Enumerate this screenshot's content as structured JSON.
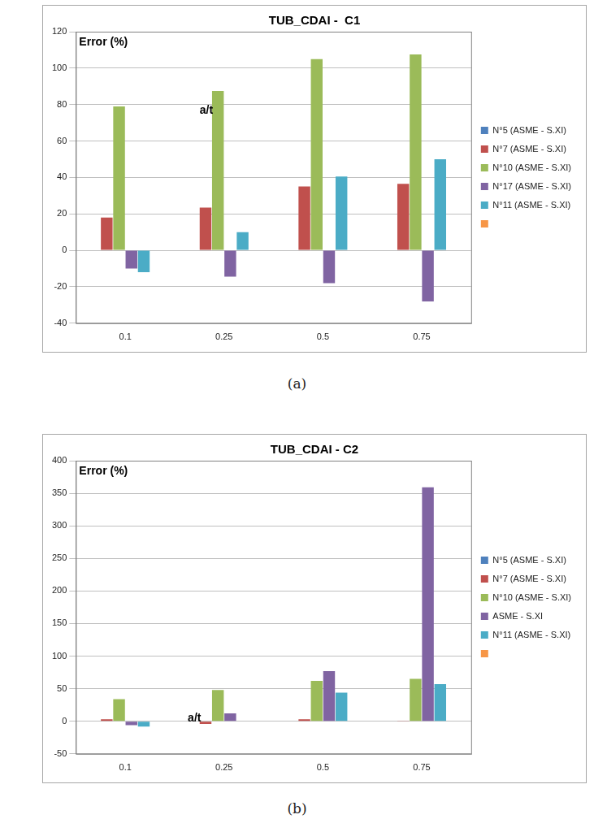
{
  "chart_data": [
    {
      "type": "bar",
      "title": "TUB_CDAI -  C1",
      "y_label": "Error (%)",
      "annotations": [
        "a/t"
      ],
      "caption": "(a)",
      "categories": [
        "0.1",
        "0.25",
        "0.5",
        "0.75"
      ],
      "series": [
        {
          "name": "N°5 (ASME - S.XI)",
          "color": "#4f81bd",
          "values": [
            0,
            0,
            0,
            0
          ]
        },
        {
          "name": "N°7 (ASME - S.XI)",
          "color": "#c0504d",
          "values": [
            18,
            23.5,
            35,
            36.5
          ]
        },
        {
          "name": "N°10 (ASME - S.XI)",
          "color": "#9bbb59",
          "values": [
            79,
            87.5,
            105,
            107.5
          ]
        },
        {
          "name": "N°17 (ASME - S.XI)",
          "color": "#8064a2",
          "values": [
            -10,
            -14.5,
            -18,
            -28
          ]
        },
        {
          "name": "N°11 (ASME - S.XI)",
          "color": "#4bacc6",
          "values": [
            -12,
            10,
            40.5,
            50
          ]
        },
        {
          "name": null,
          "color": "#f79646",
          "values": [
            null,
            null,
            null,
            null
          ]
        }
      ],
      "ylim": [
        -40,
        120
      ],
      "yticks": [
        -40,
        -20,
        0,
        20,
        40,
        60,
        80,
        100,
        120
      ],
      "grid": true,
      "legend": "right"
    },
    {
      "type": "bar",
      "title": "TUB_CDAI - C2",
      "y_label": "Error (%)",
      "annotations": [
        "a/t"
      ],
      "caption": "(b)",
      "categories": [
        "0.1",
        "0.25",
        "0.5",
        "0.75"
      ],
      "series": [
        {
          "name": "N°5 (ASME - S.XI)",
          "color": "#4f81bd",
          "values": [
            0,
            0,
            0,
            0
          ]
        },
        {
          "name": "N°7 (ASME - S.XI)",
          "color": "#c0504d",
          "values": [
            3,
            -4,
            3,
            1
          ]
        },
        {
          "name": "N°10 (ASME - S.XI)",
          "color": "#9bbb59",
          "values": [
            34,
            48,
            62,
            65
          ]
        },
        {
          "name": "ASME - S.XI",
          "color": "#8064a2",
          "values": [
            -6,
            12,
            77,
            359
          ]
        },
        {
          "name": "N°11 (ASME - S.XI)",
          "color": "#4bacc6",
          "values": [
            -8,
            0,
            44,
            57
          ]
        },
        {
          "name": null,
          "color": "#f79646",
          "values": [
            null,
            null,
            null,
            null
          ]
        }
      ],
      "ylim": [
        -50,
        400
      ],
      "yticks": [
        -50,
        0,
        50,
        100,
        150,
        200,
        250,
        300,
        350,
        400
      ],
      "grid": true,
      "legend": "right"
    }
  ]
}
